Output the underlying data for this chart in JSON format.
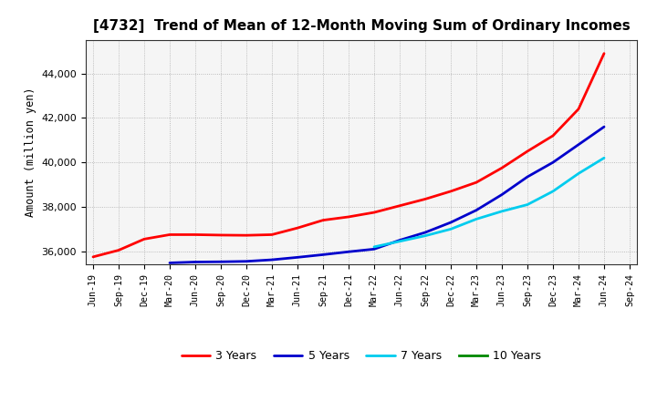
{
  "title": "[4732]  Trend of Mean of 12-Month Moving Sum of Ordinary Incomes",
  "ylabel": "Amount (million yen)",
  "background_color": "#ffffff",
  "plot_bg_color": "#f5f5f5",
  "grid_color": "#999999",
  "line_colors": {
    "3 Years": "#ff0000",
    "5 Years": "#0000cc",
    "7 Years": "#00ccee",
    "10 Years": "#008800"
  },
  "line_width": 2.0,
  "ylim": [
    35400,
    45500
  ],
  "yticks": [
    36000,
    38000,
    40000,
    42000,
    44000
  ],
  "x_labels": [
    "Jun-19",
    "Sep-19",
    "Dec-19",
    "Mar-20",
    "Jun-20",
    "Sep-20",
    "Dec-20",
    "Mar-21",
    "Jun-21",
    "Sep-21",
    "Dec-21",
    "Mar-22",
    "Jun-22",
    "Sep-22",
    "Dec-22",
    "Mar-23",
    "Jun-23",
    "Sep-23",
    "Dec-23",
    "Mar-24",
    "Jun-24",
    "Sep-24"
  ],
  "series": {
    "3 Years": {
      "dates": [
        "Jun-19",
        "Sep-19",
        "Dec-19",
        "Mar-20",
        "Jun-20",
        "Sep-20",
        "Dec-20",
        "Mar-21",
        "Jun-21",
        "Sep-21",
        "Dec-21",
        "Mar-22",
        "Jun-22",
        "Sep-22",
        "Dec-22",
        "Mar-23",
        "Jun-23",
        "Sep-23",
        "Dec-23",
        "Mar-24",
        "Jun-24"
      ],
      "values": [
        35750,
        36050,
        36550,
        36750,
        36750,
        36730,
        36720,
        36750,
        37050,
        37400,
        37550,
        37750,
        38050,
        38350,
        38700,
        39100,
        39750,
        40500,
        41200,
        42400,
        44900
      ]
    },
    "5 Years": {
      "dates": [
        "Mar-20",
        "Jun-20",
        "Sep-20",
        "Dec-20",
        "Mar-21",
        "Jun-21",
        "Sep-21",
        "Dec-21",
        "Mar-22",
        "Jun-22",
        "Sep-22",
        "Dec-22",
        "Mar-23",
        "Jun-23",
        "Sep-23",
        "Dec-23",
        "Mar-24",
        "Jun-24"
      ],
      "values": [
        35480,
        35520,
        35530,
        35550,
        35620,
        35730,
        35850,
        35980,
        36100,
        36500,
        36850,
        37300,
        37850,
        38550,
        39350,
        40000,
        40800,
        41600
      ]
    },
    "7 Years": {
      "dates": [
        "Mar-22",
        "Jun-22",
        "Sep-22",
        "Dec-22",
        "Mar-23",
        "Jun-23",
        "Sep-23",
        "Dec-23",
        "Mar-24",
        "Jun-24"
      ],
      "values": [
        36200,
        36450,
        36700,
        37000,
        37450,
        37800,
        38100,
        38700,
        39500,
        40200
      ]
    },
    "10 Years": {
      "dates": [],
      "values": []
    }
  },
  "legend_items": [
    "3 Years",
    "5 Years",
    "7 Years",
    "10 Years"
  ]
}
